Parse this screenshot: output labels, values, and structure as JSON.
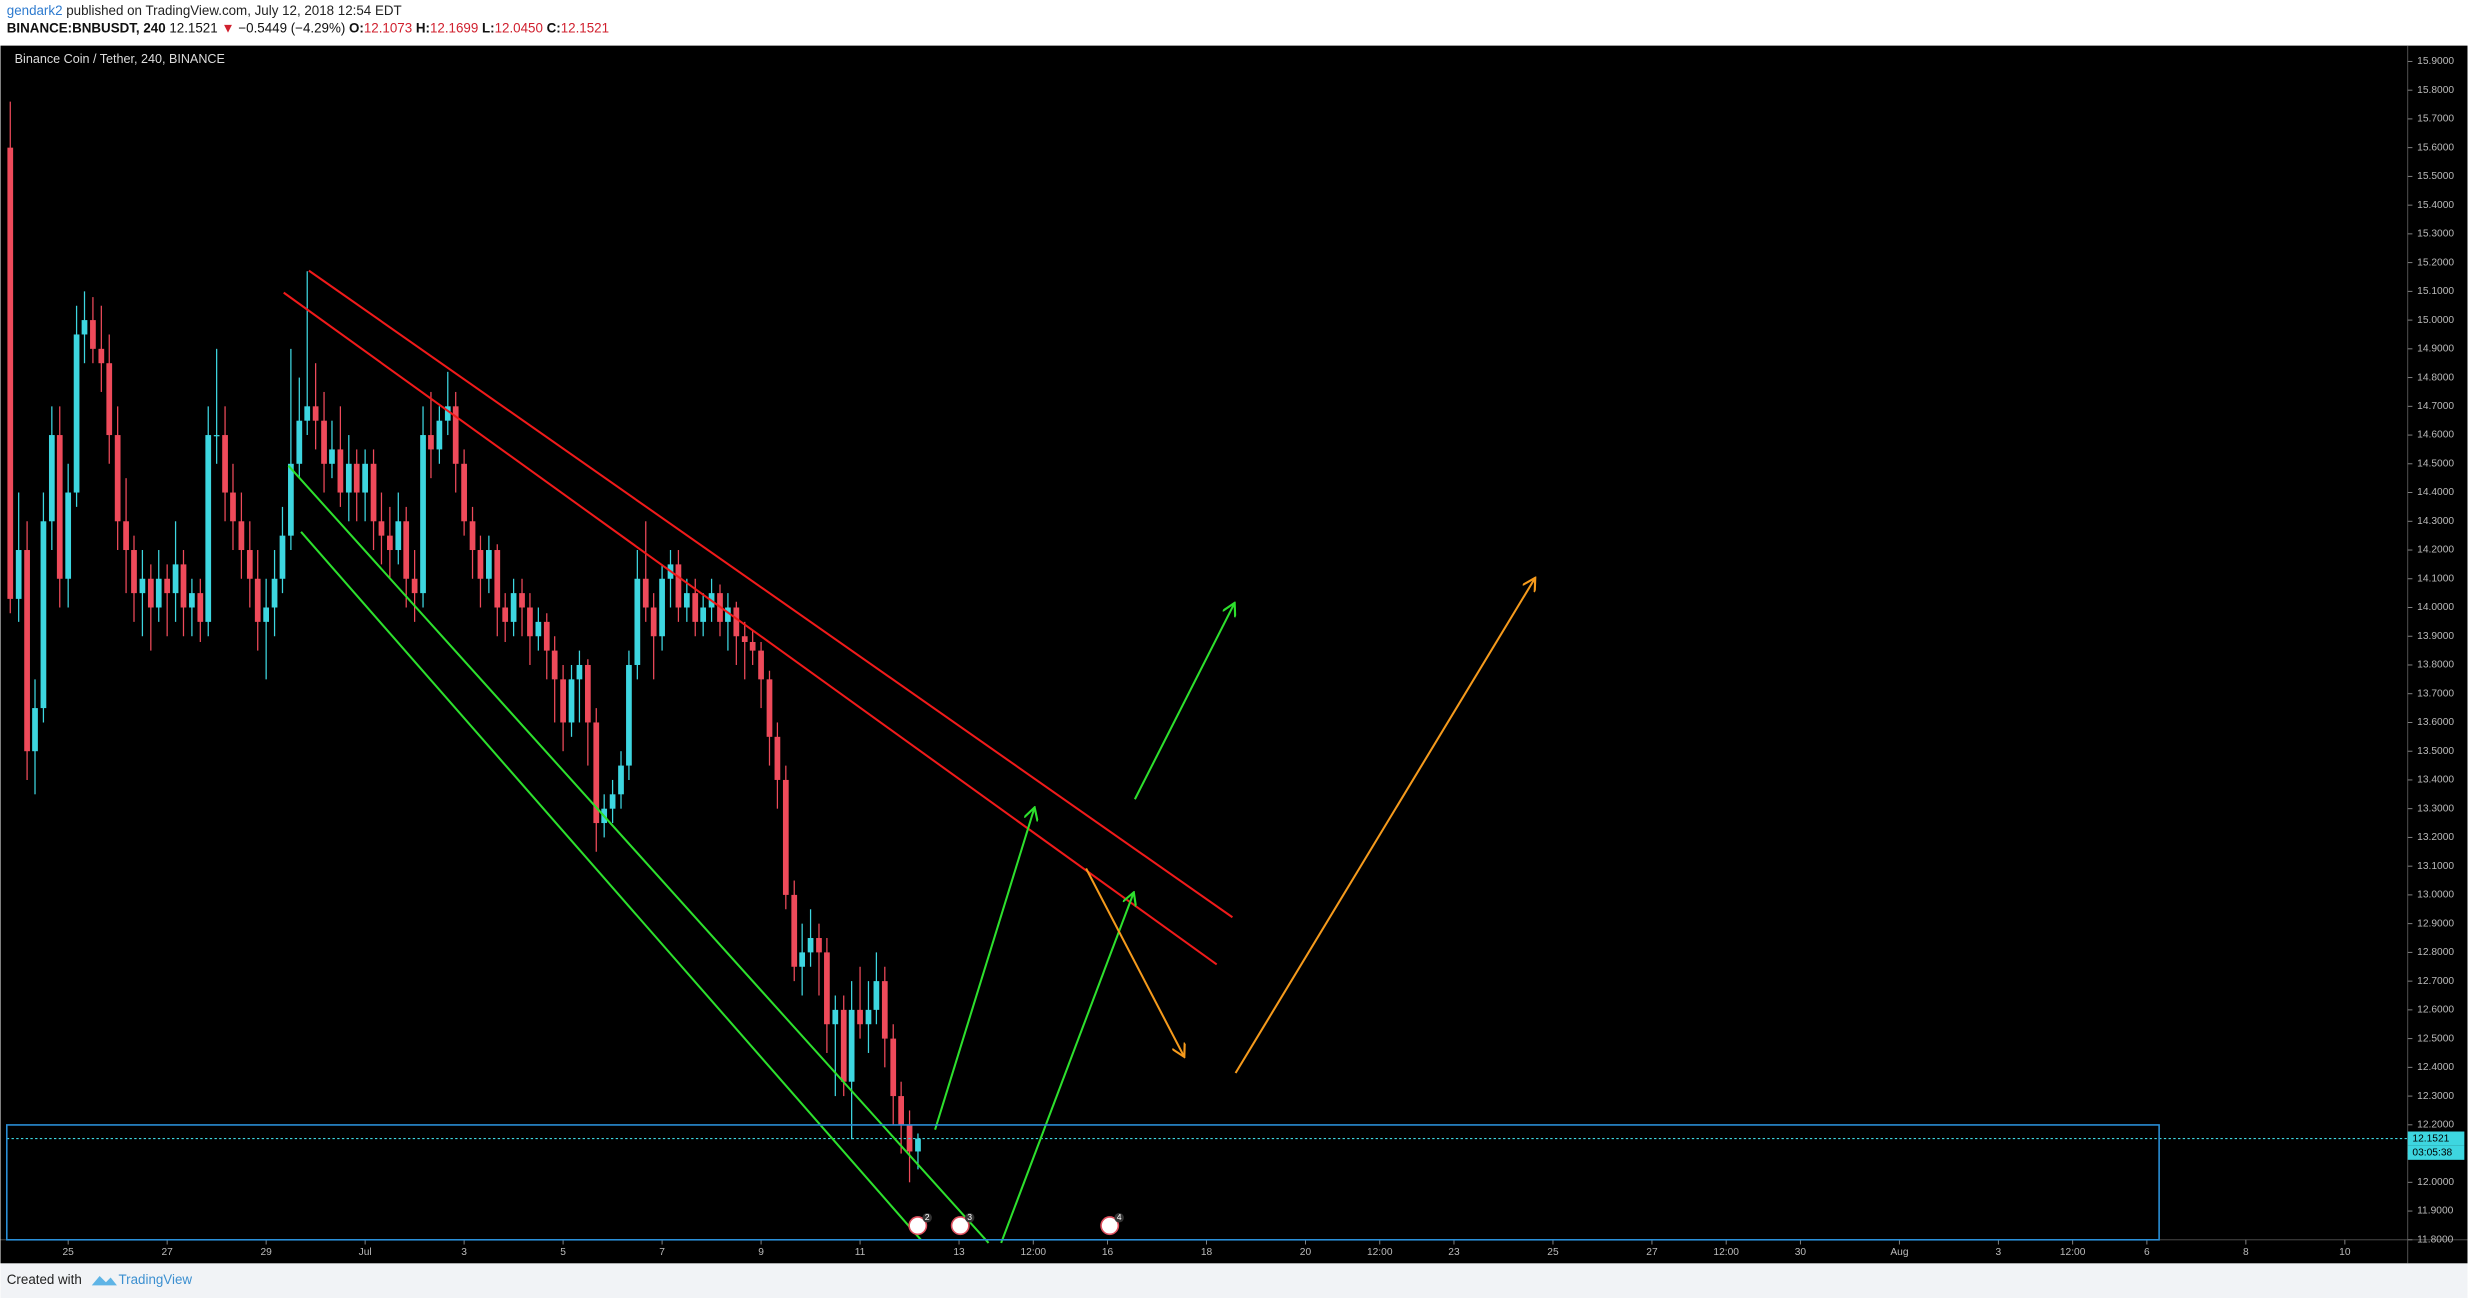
{
  "header": {
    "author": "gendark2",
    "published": "published on TradingView.com, July 12, 2018 12:54 EDT",
    "symbol": "BINANCE:BNBUSDT, 240",
    "last": "12.1521",
    "arrow": "▼",
    "change": "−0.5449 (−4.29%)",
    "o_label": "O:",
    "o": "12.1073",
    "h_label": "H:",
    "h": "12.1699",
    "l_label": "L:",
    "l": "12.0450",
    "c_label": "C:",
    "c": "12.1521"
  },
  "footer": {
    "created": "Created with",
    "brand": "TradingView"
  },
  "chart_data": {
    "type": "candlestick",
    "legend": "Binance Coin / Tether, 240, BINANCE",
    "up_color": "#3dd6e0",
    "down_color": "#ee4a5a",
    "grid": false,
    "last_price_label": "12.1521",
    "countdown": "03:05:38",
    "events": [
      "2",
      "3",
      "4"
    ],
    "xlim": [
      23.76,
      72.27
    ],
    "ylim": [
      11.8,
      15.955
    ],
    "xticks": [
      25,
      27,
      29,
      {
        "value": 31,
        "label": "Jul"
      },
      {
        "value": 33,
        "label": "3"
      },
      {
        "value": 35,
        "label": "5"
      },
      {
        "value": 37,
        "label": "7"
      },
      {
        "value": 39,
        "label": "9"
      },
      {
        "value": 41,
        "label": "11"
      },
      {
        "value": 43,
        "label": "13"
      },
      {
        "value": 44.5,
        "label": "12:00"
      },
      {
        "value": 46,
        "label": "16"
      },
      {
        "value": 48,
        "label": "18"
      },
      {
        "value": 50,
        "label": "20"
      },
      {
        "value": 51.5,
        "label": "12:00"
      },
      {
        "value": 53,
        "label": "23"
      },
      {
        "value": 55,
        "label": "25"
      },
      {
        "value": 57,
        "label": "27"
      },
      {
        "value": 58.5,
        "label": "12:00"
      },
      {
        "value": 60,
        "label": "30"
      },
      {
        "value": 62,
        "label": "Aug"
      },
      {
        "value": 64,
        "label": "3"
      },
      {
        "value": 65.5,
        "label": "12:00"
      },
      {
        "value": 67,
        "label": "6"
      },
      {
        "value": 69,
        "label": "8"
      },
      {
        "value": 71,
        "label": "10"
      }
    ],
    "yticks": [
      {
        "value": 11.8,
        "label": "11.8000"
      },
      {
        "value": 11.9,
        "label": "11.9000"
      },
      {
        "value": 12.0,
        "label": "12.0000"
      },
      {
        "value": 12.1,
        "label": "12.1000"
      },
      {
        "value": 12.2,
        "label": "12.2000"
      },
      {
        "value": 12.3,
        "label": "12.3000"
      },
      {
        "value": 12.4,
        "label": "12.4000"
      },
      {
        "value": 12.5,
        "label": "12.5000"
      },
      {
        "value": 12.6,
        "label": "12.6000"
      },
      {
        "value": 12.7,
        "label": "12.7000"
      },
      {
        "value": 12.8,
        "label": "12.8000"
      },
      {
        "value": 12.9,
        "label": "12.9000"
      },
      {
        "value": 13.0,
        "label": "13.0000"
      },
      {
        "value": 13.1,
        "label": "13.1000"
      },
      {
        "value": 13.2,
        "label": "13.2000"
      },
      {
        "value": 13.3,
        "label": "13.3000"
      },
      {
        "value": 13.4,
        "label": "13.4000"
      },
      {
        "value": 13.5,
        "label": "13.5000"
      },
      {
        "value": 13.6,
        "label": "13.6000"
      },
      {
        "value": 13.7,
        "label": "13.7000"
      },
      {
        "value": 13.8,
        "label": "13.8000"
      },
      {
        "value": 13.9,
        "label": "13.9000"
      },
      {
        "value": 14.0,
        "label": "14.0000"
      },
      {
        "value": 14.1,
        "label": "14.1000"
      },
      {
        "value": 14.2,
        "label": "14.2000"
      },
      {
        "value": 14.3,
        "label": "14.3000"
      },
      {
        "value": 14.4,
        "label": "14.4000"
      },
      {
        "value": 14.5,
        "label": "14.5000"
      },
      {
        "value": 14.6,
        "label": "14.6000"
      },
      {
        "value": 14.7,
        "label": "14.7000"
      },
      {
        "value": 14.8,
        "label": "14.8000"
      },
      {
        "value": 14.9,
        "label": "14.9000"
      },
      {
        "value": 15.0,
        "label": "15.0000"
      },
      {
        "value": 15.1,
        "label": "15.1000"
      },
      {
        "value": 15.2,
        "label": "15.2000"
      },
      {
        "value": 15.3,
        "label": "15.3000"
      },
      {
        "value": 15.4,
        "label": "15.4000"
      },
      {
        "value": 15.5,
        "label": "15.5000"
      },
      {
        "value": 15.6,
        "label": "15.6000"
      },
      {
        "value": 15.7,
        "label": "15.7000"
      },
      {
        "value": 15.8,
        "label": "15.8000"
      },
      {
        "value": 15.9,
        "label": "15.9000"
      }
    ],
    "x": [
      23.83,
      24,
      24.17,
      24.33,
      24.5,
      24.67,
      24.83,
      25,
      25.17,
      25.33,
      25.5,
      25.67,
      25.83,
      26,
      26.17,
      26.33,
      26.5,
      26.67,
      26.83,
      27,
      27.17,
      27.33,
      27.5,
      27.67,
      27.83,
      28,
      28.17,
      28.33,
      28.5,
      28.67,
      28.83,
      29,
      29.17,
      29.33,
      29.5,
      29.67,
      29.83,
      30,
      30.17,
      30.33,
      30.5,
      30.67,
      30.83,
      31,
      31.17,
      31.33,
      31.5,
      31.67,
      31.83,
      32,
      32.17,
      32.33,
      32.5,
      32.67,
      32.83,
      33,
      33.17,
      33.33,
      33.5,
      33.67,
      33.83,
      34,
      34.17,
      34.33,
      34.5,
      34.67,
      34.83,
      35,
      35.17,
      35.33,
      35.5,
      35.67,
      35.83,
      36,
      36.17,
      36.33,
      36.5,
      36.67,
      36.83,
      37,
      37.17,
      37.33,
      37.5,
      37.67,
      37.83,
      38,
      38.17,
      38.33,
      38.5,
      38.67,
      38.83,
      39,
      39.17,
      39.33,
      39.5,
      39.67,
      39.83,
      40,
      40.17,
      40.33,
      40.5,
      40.67,
      40.83,
      41,
      41.17,
      41.33,
      41.5,
      41.67,
      41.83,
      42,
      42.17
    ],
    "candles": [
      [
        15.6,
        15.76,
        13.98,
        14.03
      ],
      [
        14.03,
        14.4,
        13.95,
        14.2
      ],
      [
        14.2,
        14.3,
        13.4,
        13.5
      ],
      [
        13.5,
        13.75,
        13.35,
        13.65
      ],
      [
        13.65,
        14.4,
        13.6,
        14.3
      ],
      [
        14.3,
        14.7,
        14.2,
        14.6
      ],
      [
        14.6,
        14.7,
        14.0,
        14.1
      ],
      [
        14.1,
        14.5,
        14.0,
        14.4
      ],
      [
        14.4,
        15.05,
        14.35,
        14.95
      ],
      [
        14.95,
        15.1,
        14.85,
        15.0
      ],
      [
        15.0,
        15.08,
        14.85,
        14.9
      ],
      [
        14.9,
        15.05,
        14.75,
        14.85
      ],
      [
        14.85,
        14.95,
        14.5,
        14.6
      ],
      [
        14.6,
        14.7,
        14.2,
        14.3
      ],
      [
        14.3,
        14.45,
        14.05,
        14.2
      ],
      [
        14.2,
        14.25,
        13.95,
        14.05
      ],
      [
        14.05,
        14.2,
        13.9,
        14.1
      ],
      [
        14.1,
        14.15,
        13.85,
        14.0
      ],
      [
        14.0,
        14.2,
        13.95,
        14.1
      ],
      [
        14.1,
        14.15,
        13.9,
        14.05
      ],
      [
        14.05,
        14.3,
        13.95,
        14.15
      ],
      [
        14.15,
        14.2,
        13.9,
        14.0
      ],
      [
        14.0,
        14.1,
        13.9,
        14.05
      ],
      [
        14.05,
        14.1,
        13.88,
        13.95
      ],
      [
        13.95,
        14.7,
        13.9,
        14.6
      ],
      [
        14.6,
        14.9,
        14.5,
        14.6
      ],
      [
        14.6,
        14.7,
        14.3,
        14.4
      ],
      [
        14.4,
        14.5,
        14.2,
        14.3
      ],
      [
        14.3,
        14.4,
        14.1,
        14.2
      ],
      [
        14.2,
        14.3,
        14.0,
        14.1
      ],
      [
        14.1,
        14.2,
        13.85,
        13.95
      ],
      [
        13.95,
        14.1,
        13.75,
        14.0
      ],
      [
        14.0,
        14.2,
        13.9,
        14.1
      ],
      [
        14.1,
        14.35,
        14.05,
        14.25
      ],
      [
        14.25,
        14.9,
        14.2,
        14.5
      ],
      [
        14.5,
        14.8,
        14.45,
        14.65
      ],
      [
        14.65,
        15.17,
        14.6,
        14.7
      ],
      [
        14.7,
        14.85,
        14.55,
        14.65
      ],
      [
        14.65,
        14.75,
        14.4,
        14.5
      ],
      [
        14.5,
        14.65,
        14.45,
        14.55
      ],
      [
        14.55,
        14.7,
        14.35,
        14.4
      ],
      [
        14.4,
        14.6,
        14.3,
        14.5
      ],
      [
        14.5,
        14.55,
        14.3,
        14.4
      ],
      [
        14.4,
        14.55,
        14.3,
        14.5
      ],
      [
        14.5,
        14.55,
        14.2,
        14.3
      ],
      [
        14.3,
        14.4,
        14.15,
        14.25
      ],
      [
        14.25,
        14.35,
        14.1,
        14.2
      ],
      [
        14.2,
        14.4,
        14.15,
        14.3
      ],
      [
        14.3,
        14.35,
        14.0,
        14.1
      ],
      [
        14.1,
        14.2,
        13.95,
        14.05
      ],
      [
        14.05,
        14.7,
        14.0,
        14.6
      ],
      [
        14.6,
        14.75,
        14.45,
        14.55
      ],
      [
        14.55,
        14.7,
        14.5,
        14.65
      ],
      [
        14.65,
        14.82,
        14.6,
        14.7
      ],
      [
        14.7,
        14.75,
        14.4,
        14.5
      ],
      [
        14.5,
        14.55,
        14.25,
        14.3
      ],
      [
        14.3,
        14.35,
        14.1,
        14.2
      ],
      [
        14.2,
        14.25,
        14.0,
        14.1
      ],
      [
        14.1,
        14.25,
        14.05,
        14.2
      ],
      [
        14.2,
        14.22,
        13.9,
        14.0
      ],
      [
        14.0,
        14.05,
        13.88,
        13.95
      ],
      [
        13.95,
        14.1,
        13.9,
        14.05
      ],
      [
        14.05,
        14.1,
        13.9,
        14.0
      ],
      [
        14.0,
        14.05,
        13.8,
        13.9
      ],
      [
        13.9,
        14.0,
        13.85,
        13.95
      ],
      [
        13.95,
        13.98,
        13.75,
        13.85
      ],
      [
        13.85,
        13.9,
        13.6,
        13.75
      ],
      [
        13.75,
        13.8,
        13.5,
        13.6
      ],
      [
        13.6,
        13.8,
        13.55,
        13.75
      ],
      [
        13.75,
        13.85,
        13.6,
        13.8
      ],
      [
        13.8,
        13.82,
        13.45,
        13.6
      ],
      [
        13.6,
        13.65,
        13.15,
        13.25
      ],
      [
        13.25,
        13.35,
        13.2,
        13.3
      ],
      [
        13.3,
        13.4,
        13.25,
        13.35
      ],
      [
        13.35,
        13.5,
        13.3,
        13.45
      ],
      [
        13.45,
        13.85,
        13.4,
        13.8
      ],
      [
        13.8,
        14.2,
        13.75,
        14.1
      ],
      [
        14.1,
        14.3,
        13.95,
        14.0
      ],
      [
        14.0,
        14.05,
        13.75,
        13.9
      ],
      [
        13.9,
        14.15,
        13.85,
        14.1
      ],
      [
        14.1,
        14.2,
        14.0,
        14.15
      ],
      [
        14.15,
        14.2,
        13.95,
        14.0
      ],
      [
        14.0,
        14.1,
        13.95,
        14.05
      ],
      [
        14.05,
        14.1,
        13.9,
        13.95
      ],
      [
        13.95,
        14.05,
        13.9,
        14.0
      ],
      [
        14.0,
        14.1,
        13.95,
        14.05
      ],
      [
        14.05,
        14.08,
        13.9,
        13.95
      ],
      [
        13.95,
        14.05,
        13.85,
        14.0
      ],
      [
        14.0,
        14.02,
        13.8,
        13.9
      ],
      [
        13.9,
        13.95,
        13.75,
        13.88
      ],
      [
        13.88,
        13.92,
        13.8,
        13.85
      ],
      [
        13.85,
        13.88,
        13.65,
        13.75
      ],
      [
        13.75,
        13.78,
        13.45,
        13.55
      ],
      [
        13.55,
        13.6,
        13.3,
        13.4
      ],
      [
        13.4,
        13.45,
        12.95,
        13.0
      ],
      [
        13.0,
        13.05,
        12.7,
        12.75
      ],
      [
        12.75,
        12.9,
        12.65,
        12.8
      ],
      [
        12.8,
        12.95,
        12.75,
        12.85
      ],
      [
        12.85,
        12.9,
        12.65,
        12.8
      ],
      [
        12.8,
        12.85,
        12.45,
        12.55
      ],
      [
        12.55,
        12.65,
        12.3,
        12.6
      ],
      [
        12.6,
        12.65,
        12.3,
        12.35
      ],
      [
        12.35,
        12.7,
        12.15,
        12.6
      ],
      [
        12.6,
        12.75,
        12.5,
        12.55
      ],
      [
        12.55,
        12.7,
        12.45,
        12.6
      ],
      [
        12.6,
        12.8,
        12.55,
        12.7
      ],
      [
        12.7,
        12.75,
        12.4,
        12.5
      ],
      [
        12.5,
        12.55,
        12.2,
        12.3
      ],
      [
        12.3,
        12.35,
        12.1,
        12.2
      ],
      [
        12.2,
        12.25,
        12.0,
        12.1073
      ],
      [
        12.1073,
        12.1699,
        12.045,
        12.1521
      ]
    ]
  }
}
